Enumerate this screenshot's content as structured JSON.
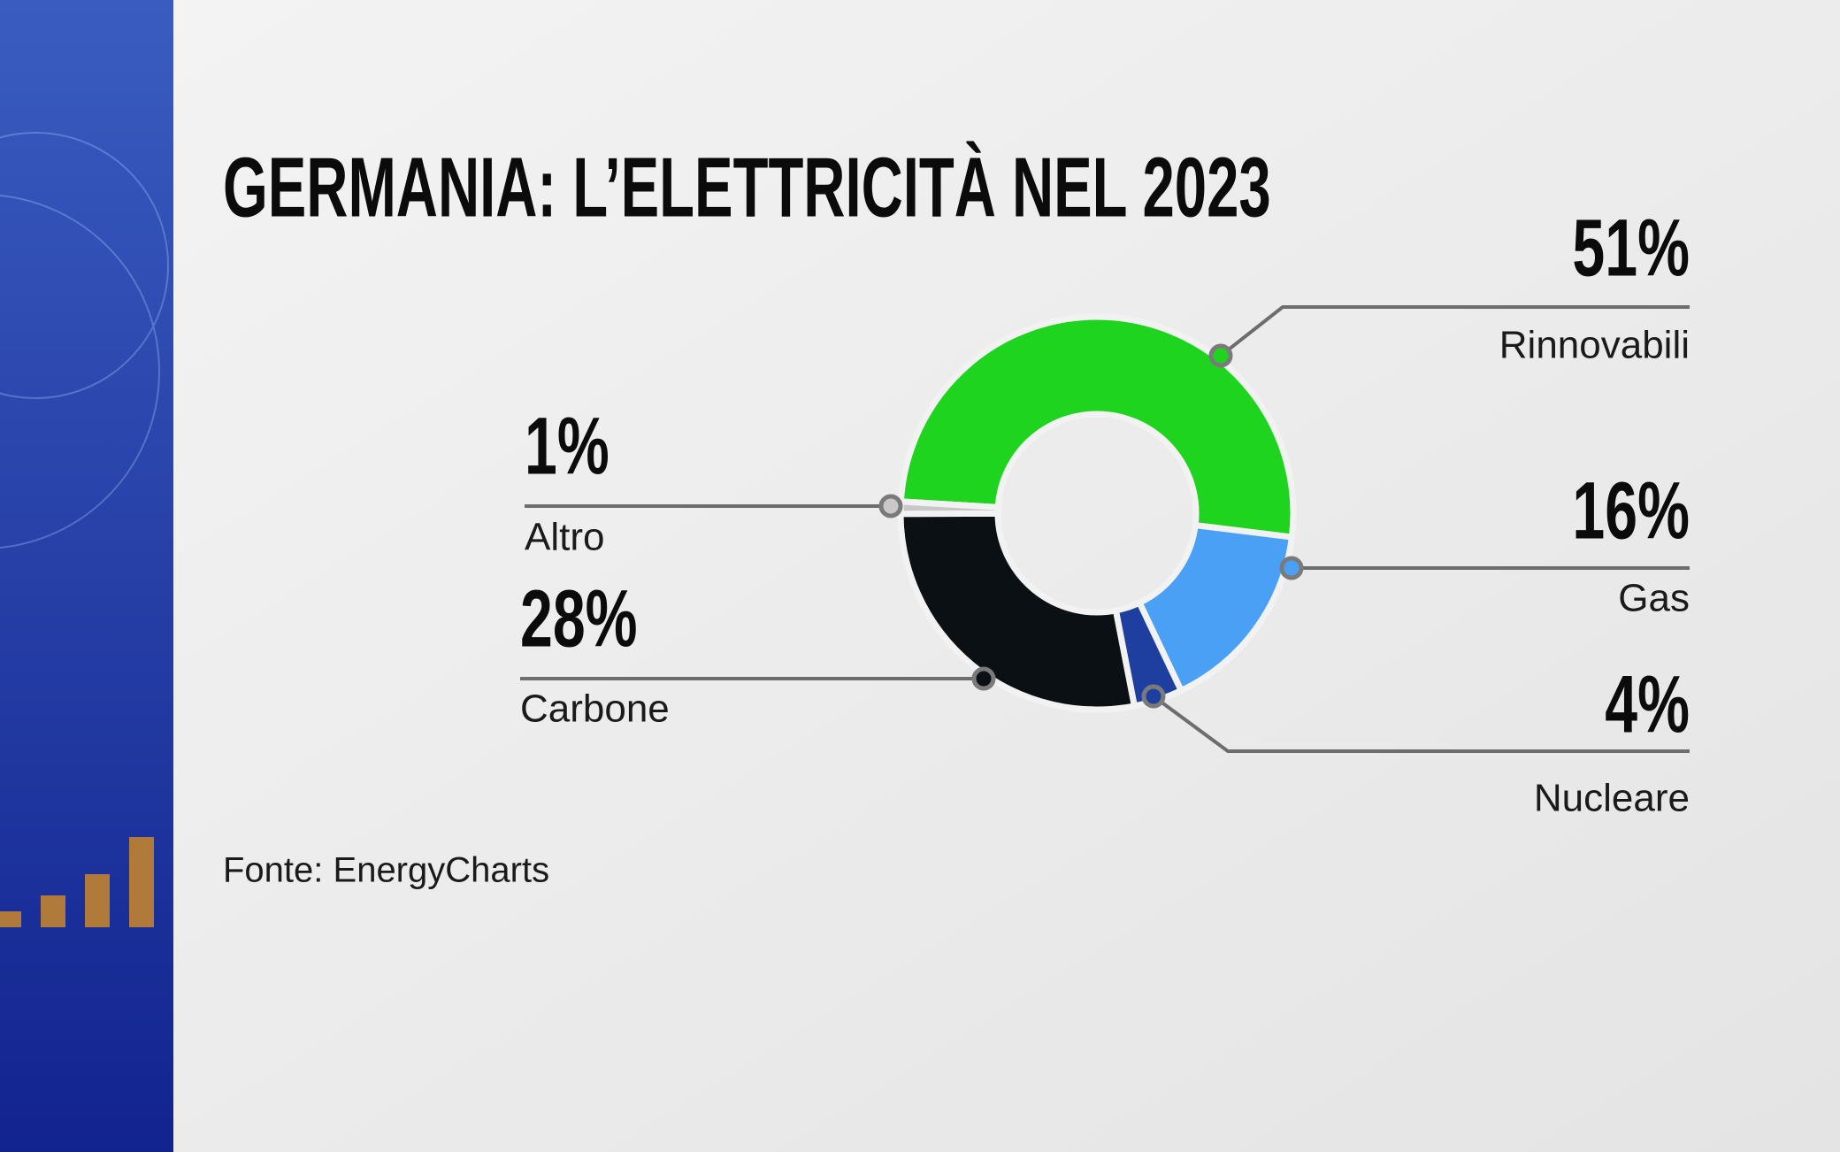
{
  "chart_data": {
    "type": "pie",
    "donut": true,
    "title": "GERMANIA: L’ELETTRICITÀ NEL 2023",
    "source": "Fonte: EnergyCharts",
    "categories": [
      "Rinnovabili",
      "Gas",
      "Nucleare",
      "Carbone",
      "Altro"
    ],
    "values": [
      51,
      16,
      4,
      28,
      1
    ],
    "value_labels": [
      "51%",
      "16%",
      "4%",
      "28%",
      "1%"
    ],
    "colors": [
      "#1ed41e",
      "#4aa0f5",
      "#1f3fa0",
      "#0a1014",
      "#c8c8c8"
    ]
  }
}
